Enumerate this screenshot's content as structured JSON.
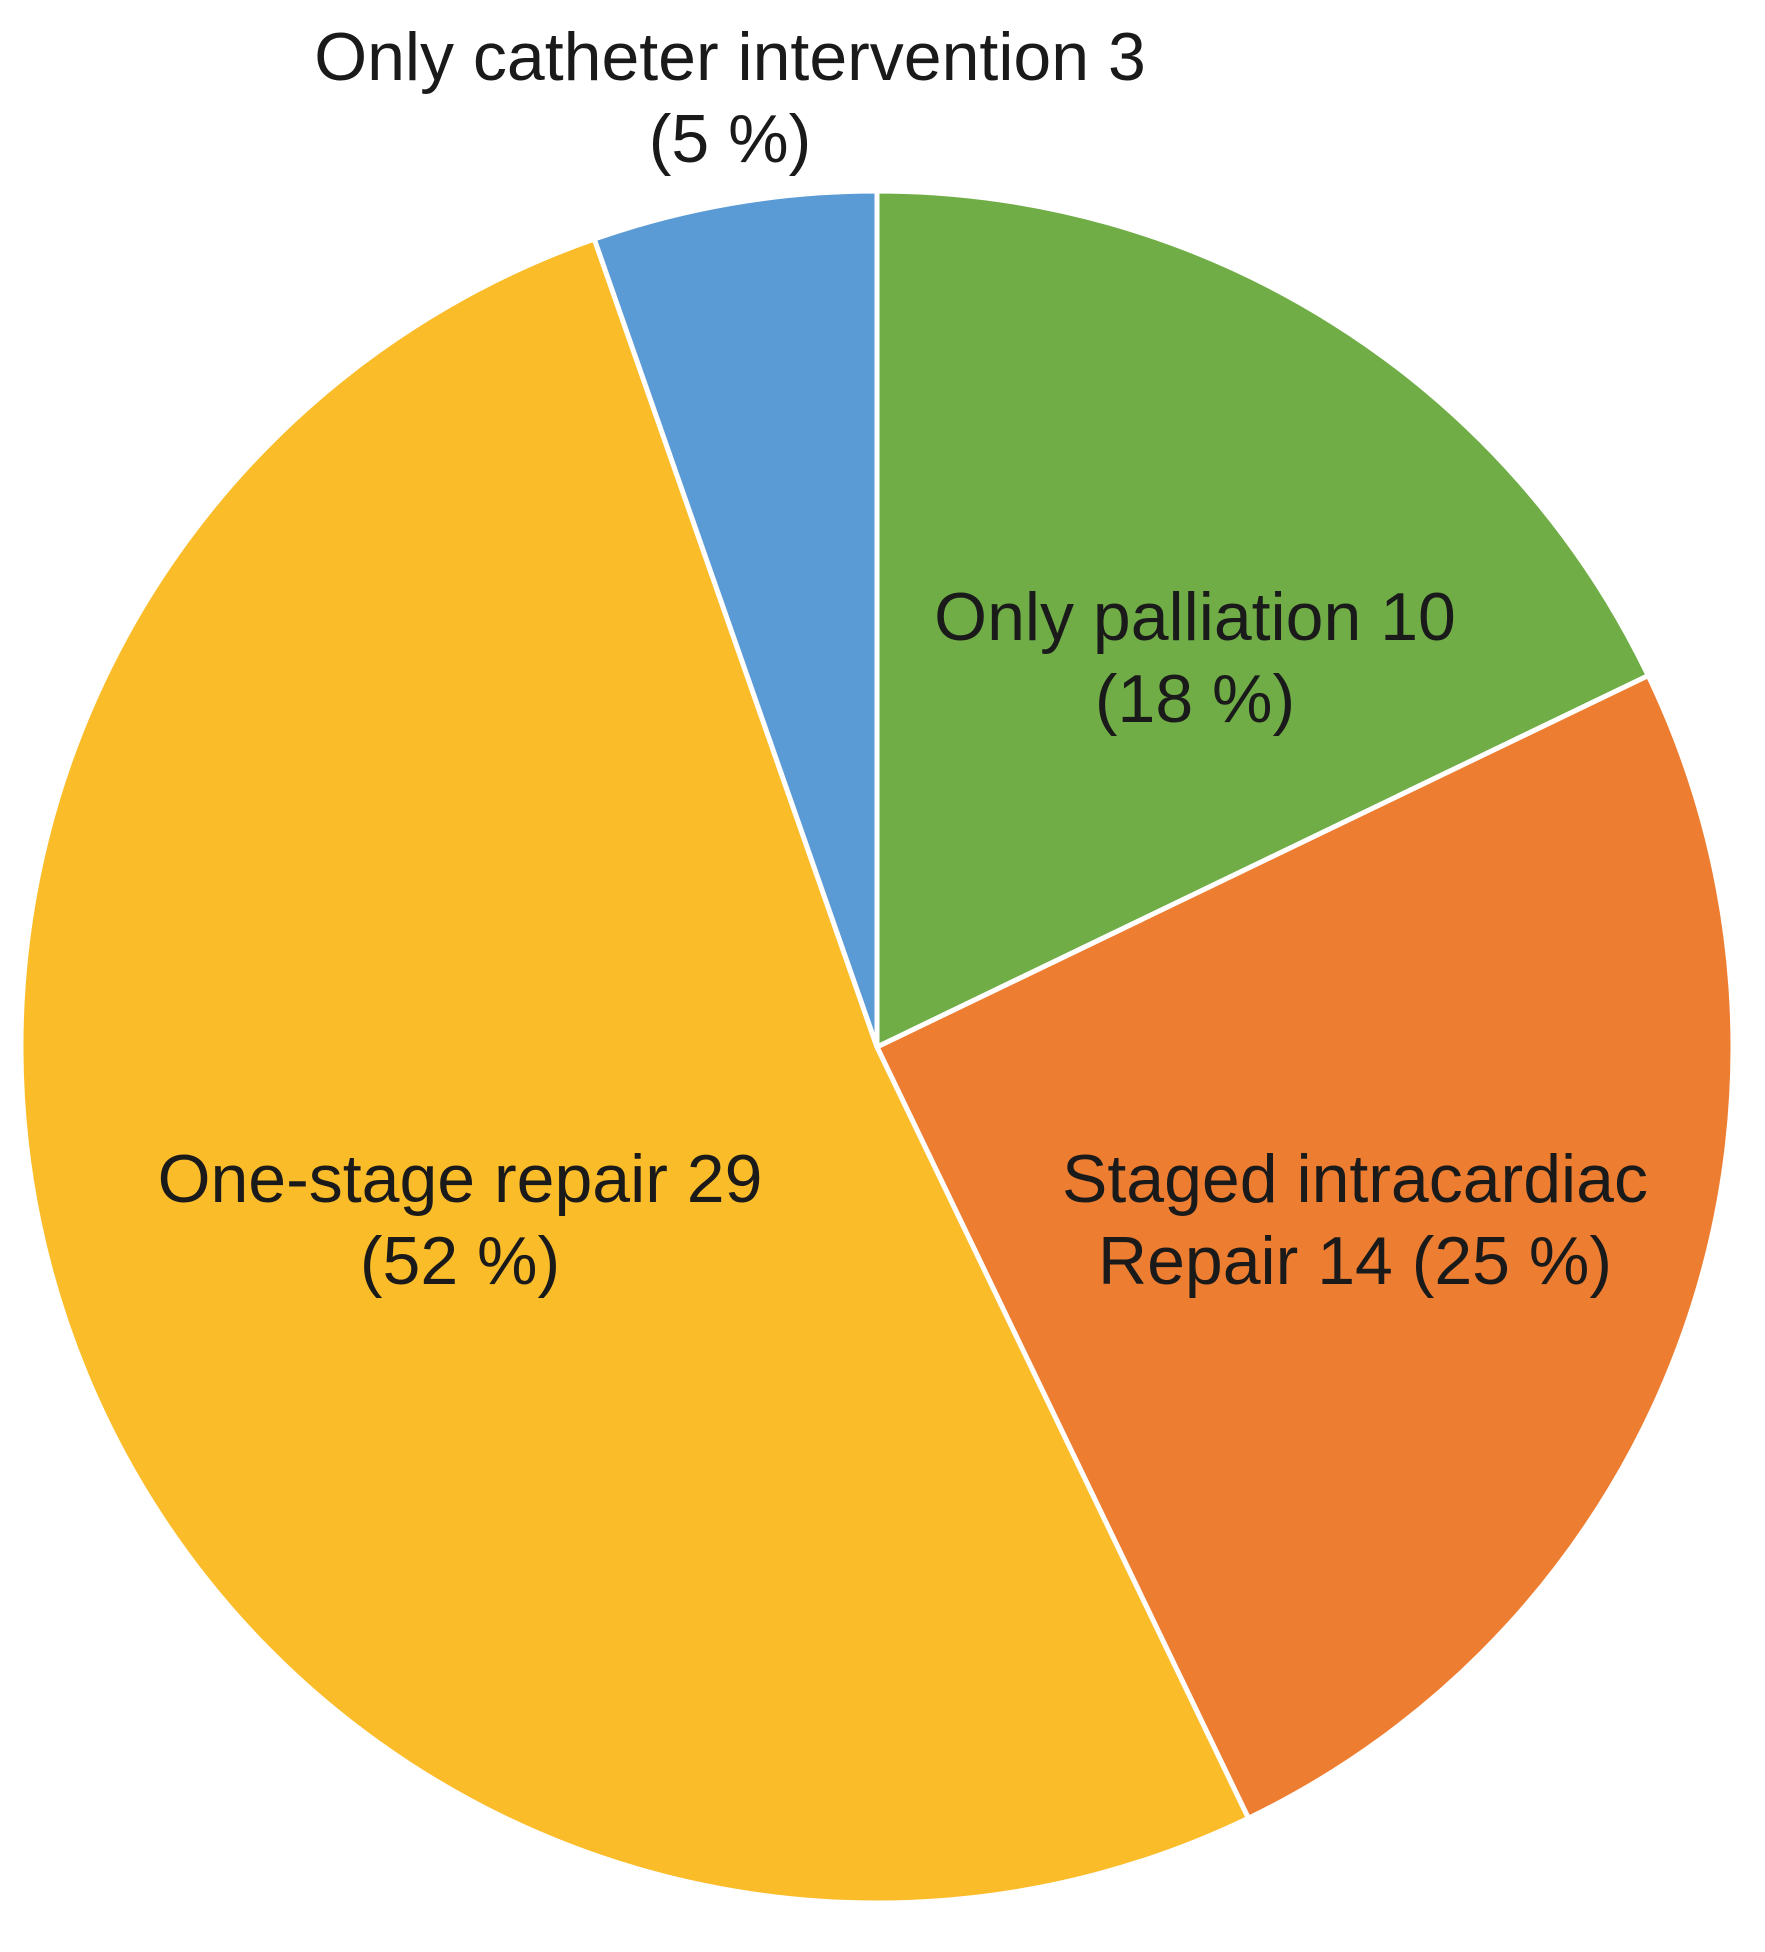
{
  "chart_data": {
    "type": "pie",
    "title": "",
    "start": "12 o'clock",
    "direction": "clockwise",
    "slices": [
      {
        "category": "Only palliation",
        "value": 10,
        "percent": 18,
        "label_lines": [
          "Only palliation 10",
          "(18 %)"
        ],
        "color": "#70AD47"
      },
      {
        "category": "Staged intracardiac Repair",
        "value": 14,
        "percent": 25,
        "label_lines": [
          "Staged intracardiac",
          "Repair 14 (25 %)"
        ],
        "color": "#ED7D31"
      },
      {
        "category": "One-stage repair",
        "value": 29,
        "percent": 52,
        "label_lines": [
          "One-stage repair 29",
          "(52 %)"
        ],
        "color": "#FBBC2A"
      },
      {
        "category": "Only catheter intervention",
        "value": 3,
        "percent": 5,
        "label_lines": [
          "Only catheter intervention 3",
          "(5 %)"
        ],
        "color": "#5B9BD5"
      }
    ]
  }
}
